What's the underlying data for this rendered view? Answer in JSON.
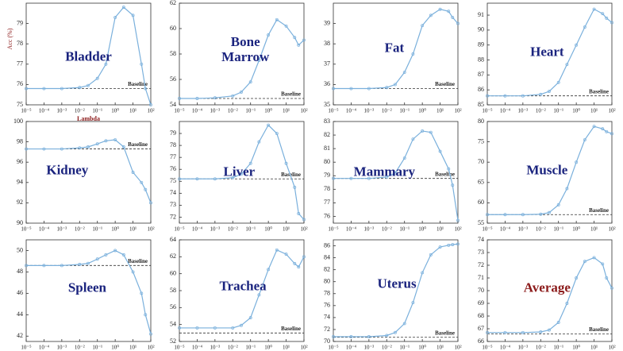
{
  "chart_data": [
    {
      "type": "line",
      "title": "Bladder",
      "ylabel": "Acc (%)",
      "xlabel": "Lambda",
      "xscale": "log",
      "xlim": [
        1e-05,
        100
      ],
      "xticks": [
        {
          "value": 1e-05,
          "label": "10⁻⁵"
        },
        {
          "value": 0.0001,
          "label": "10⁻⁴"
        },
        {
          "value": 0.001,
          "label": "10⁻³"
        },
        {
          "value": 0.01,
          "label": "10⁻²"
        },
        {
          "value": 0.1,
          "label": "10⁻¹"
        },
        {
          "value": 1,
          "label": "10⁰"
        },
        {
          "value": 10,
          "label": "10¹"
        },
        {
          "value": 100,
          "label": "10²"
        }
      ],
      "ylim": [
        75,
        80
      ],
      "yticks": [
        75,
        76,
        77,
        78,
        79
      ],
      "baseline": 75.8,
      "baseline_label": "Baseline",
      "color": "#7ab0dc",
      "title_color": "#1a237e",
      "x": [
        1e-05,
        0.0001,
        0.001,
        0.01,
        0.03,
        0.1,
        0.3,
        1,
        3,
        10,
        30,
        50,
        100
      ],
      "values": [
        75.8,
        75.8,
        75.8,
        75.85,
        75.95,
        76.3,
        77.0,
        79.3,
        79.8,
        79.4,
        77.0,
        75.8,
        75.0
      ]
    },
    {
      "type": "line",
      "title": "Bone\nMarrow",
      "xscale": "log",
      "xlim": [
        1e-05,
        100
      ],
      "xticks": [
        {
          "value": 1e-05,
          "label": "10⁻⁵"
        },
        {
          "value": 0.0001,
          "label": "10⁻⁴"
        },
        {
          "value": 0.001,
          "label": "10⁻³"
        },
        {
          "value": 0.01,
          "label": "10⁻²"
        },
        {
          "value": 0.1,
          "label": "10⁻¹"
        },
        {
          "value": 1,
          "label": "10⁰"
        },
        {
          "value": 10,
          "label": "10¹"
        },
        {
          "value": 100,
          "label": "10²"
        }
      ],
      "ylim": [
        54,
        62
      ],
      "yticks": [
        54,
        56,
        58,
        60,
        62
      ],
      "baseline": 54.5,
      "baseline_label": "Baseline",
      "color": "#7ab0dc",
      "title_color": "#1a237e",
      "x": [
        1e-05,
        0.0001,
        0.001,
        0.01,
        0.03,
        0.1,
        0.3,
        1,
        3,
        10,
        30,
        50,
        100
      ],
      "values": [
        54.5,
        54.5,
        54.55,
        54.7,
        55.0,
        55.8,
        57.5,
        59.5,
        60.7,
        60.2,
        59.3,
        58.7,
        59.1
      ]
    },
    {
      "type": "line",
      "title": "Fat",
      "xscale": "log",
      "xlim": [
        1e-05,
        100
      ],
      "xticks": [
        {
          "value": 1e-05,
          "label": "10⁻⁵"
        },
        {
          "value": 0.0001,
          "label": "10⁻⁴"
        },
        {
          "value": 0.001,
          "label": "10⁻³"
        },
        {
          "value": 0.01,
          "label": "10⁻²"
        },
        {
          "value": 0.1,
          "label": "10⁻¹"
        },
        {
          "value": 1,
          "label": "10⁰"
        },
        {
          "value": 10,
          "label": "10¹"
        },
        {
          "value": 100,
          "label": "10²"
        }
      ],
      "ylim": [
        35,
        40
      ],
      "yticks": [
        35,
        36,
        37,
        38,
        39
      ],
      "baseline": 35.8,
      "baseline_label": "Baseline",
      "color": "#7ab0dc",
      "title_color": "#1a237e",
      "x": [
        1e-05,
        0.0001,
        0.001,
        0.01,
        0.03,
        0.1,
        0.3,
        1,
        3,
        10,
        30,
        50,
        100
      ],
      "values": [
        35.8,
        35.8,
        35.8,
        35.85,
        36.0,
        36.6,
        37.5,
        38.9,
        39.4,
        39.7,
        39.6,
        39.3,
        39.0
      ]
    },
    {
      "type": "line",
      "title": "Heart",
      "xscale": "log",
      "xlim": [
        1e-05,
        100
      ],
      "xticks": [
        {
          "value": 1e-05,
          "label": "10⁻⁵"
        },
        {
          "value": 0.0001,
          "label": "10⁻⁴"
        },
        {
          "value": 0.001,
          "label": "10⁻³"
        },
        {
          "value": 0.01,
          "label": "10⁻²"
        },
        {
          "value": 0.1,
          "label": "10⁻¹"
        },
        {
          "value": 1,
          "label": "10⁰"
        },
        {
          "value": 10,
          "label": "10¹"
        },
        {
          "value": 100,
          "label": "10²"
        }
      ],
      "ylim": [
        85,
        91.8
      ],
      "yticks": [
        85,
        86,
        87,
        88,
        89,
        90,
        91
      ],
      "baseline": 85.6,
      "baseline_label": "Baseline",
      "color": "#7ab0dc",
      "title_color": "#1a237e",
      "x": [
        1e-05,
        0.0001,
        0.001,
        0.01,
        0.03,
        0.1,
        0.3,
        1,
        3,
        10,
        30,
        50,
        100
      ],
      "values": [
        85.6,
        85.6,
        85.6,
        85.7,
        85.9,
        86.5,
        87.7,
        89.0,
        90.2,
        91.4,
        91.1,
        90.8,
        90.5
      ]
    },
    {
      "type": "line",
      "title": "Kidney",
      "xscale": "log",
      "xlim": [
        1e-05,
        100
      ],
      "xticks": [
        {
          "value": 1e-05,
          "label": "10⁻⁵"
        },
        {
          "value": 0.0001,
          "label": "10⁻⁴"
        },
        {
          "value": 0.001,
          "label": "10⁻³"
        },
        {
          "value": 0.01,
          "label": "10⁻²"
        },
        {
          "value": 0.1,
          "label": "10⁻¹"
        },
        {
          "value": 1,
          "label": "10⁰"
        },
        {
          "value": 10,
          "label": "10¹"
        },
        {
          "value": 100,
          "label": "10²"
        }
      ],
      "ylim": [
        90,
        100
      ],
      "yticks": [
        90,
        92,
        94,
        96,
        98,
        100
      ],
      "baseline": 97.3,
      "baseline_label": "Baseline",
      "color": "#7ab0dc",
      "title_color": "#1a237e",
      "x": [
        1e-05,
        0.0001,
        0.001,
        0.01,
        0.03,
        0.1,
        0.3,
        1,
        3,
        10,
        30,
        50,
        100
      ],
      "values": [
        97.3,
        97.3,
        97.3,
        97.4,
        97.5,
        97.8,
        98.1,
        98.2,
        97.5,
        95.0,
        94.0,
        93.3,
        92.0
      ]
    },
    {
      "type": "line",
      "title": "Liver",
      "xscale": "log",
      "xlim": [
        1e-05,
        100
      ],
      "xticks": [
        {
          "value": 1e-05,
          "label": "10⁻⁵"
        },
        {
          "value": 0.0001,
          "label": "10⁻⁴"
        },
        {
          "value": 0.001,
          "label": "10⁻³"
        },
        {
          "value": 0.01,
          "label": "10⁻²"
        },
        {
          "value": 0.1,
          "label": "10⁻¹"
        },
        {
          "value": 1,
          "label": "10⁰"
        },
        {
          "value": 10,
          "label": "10¹"
        },
        {
          "value": 100,
          "label": "10²"
        }
      ],
      "ylim": [
        71.5,
        80
      ],
      "yticks": [
        72,
        73,
        74,
        75,
        76,
        77,
        78,
        79
      ],
      "baseline": 75.2,
      "baseline_label": "Baseline",
      "color": "#7ab0dc",
      "title_color": "#1a237e",
      "x": [
        1e-05,
        0.0001,
        0.001,
        0.01,
        0.03,
        0.1,
        0.3,
        1,
        3,
        10,
        30,
        50,
        100
      ],
      "values": [
        75.2,
        75.2,
        75.2,
        75.3,
        75.6,
        76.5,
        78.3,
        79.7,
        79.0,
        76.5,
        74.5,
        72.3,
        71.8
      ]
    },
    {
      "type": "line",
      "title": "Mammary",
      "xscale": "log",
      "xlim": [
        1e-05,
        100
      ],
      "xticks": [
        {
          "value": 1e-05,
          "label": "10⁻⁵"
        },
        {
          "value": 0.0001,
          "label": "10⁻⁴"
        },
        {
          "value": 0.001,
          "label": "10⁻³"
        },
        {
          "value": 0.01,
          "label": "10⁻²"
        },
        {
          "value": 0.1,
          "label": "10⁻¹"
        },
        {
          "value": 1,
          "label": "10⁰"
        },
        {
          "value": 10,
          "label": "10¹"
        },
        {
          "value": 100,
          "label": "10²"
        }
      ],
      "ylim": [
        75.5,
        83
      ],
      "yticks": [
        76,
        77,
        78,
        79,
        80,
        81,
        82,
        83
      ],
      "baseline": 78.8,
      "baseline_label": "Baseline",
      "color": "#7ab0dc",
      "title_color": "#1a237e",
      "x": [
        1e-05,
        0.0001,
        0.001,
        0.01,
        0.03,
        0.1,
        0.3,
        1,
        3,
        10,
        30,
        50,
        100
      ],
      "values": [
        78.8,
        78.8,
        78.8,
        78.9,
        79.2,
        80.3,
        81.7,
        82.3,
        82.2,
        80.8,
        79.5,
        78.3,
        75.7
      ]
    },
    {
      "type": "line",
      "title": "Muscle",
      "xscale": "log",
      "xlim": [
        1e-05,
        100
      ],
      "xticks": [
        {
          "value": 1e-05,
          "label": "10⁻⁵"
        },
        {
          "value": 0.0001,
          "label": "10⁻⁴"
        },
        {
          "value": 0.001,
          "label": "10⁻³"
        },
        {
          "value": 0.01,
          "label": "10⁻²"
        },
        {
          "value": 0.1,
          "label": "10⁻¹"
        },
        {
          "value": 1,
          "label": "10⁰"
        },
        {
          "value": 10,
          "label": "10¹"
        },
        {
          "value": 100,
          "label": "10²"
        }
      ],
      "ylim": [
        55,
        80
      ],
      "yticks": [
        55,
        60,
        65,
        70,
        75,
        80
      ],
      "baseline": 57.1,
      "baseline_label": "Baseline",
      "color": "#7ab0dc",
      "title_color": "#1a237e",
      "x": [
        1e-05,
        0.0001,
        0.001,
        0.01,
        0.03,
        0.1,
        0.3,
        1,
        3,
        10,
        30,
        50,
        100
      ],
      "values": [
        57.1,
        57.1,
        57.1,
        57.2,
        57.6,
        59.5,
        63.5,
        70.0,
        75.5,
        78.8,
        78.2,
        77.5,
        77.0
      ]
    },
    {
      "type": "line",
      "title": "Spleen",
      "xscale": "log",
      "xlim": [
        1e-05,
        100
      ],
      "xticks": [
        {
          "value": 1e-05,
          "label": "10⁻⁵"
        },
        {
          "value": 0.0001,
          "label": "10⁻⁴"
        },
        {
          "value": 0.001,
          "label": "10⁻³"
        },
        {
          "value": 0.01,
          "label": "10⁻²"
        },
        {
          "value": 0.1,
          "label": "10⁻¹"
        },
        {
          "value": 1,
          "label": "10⁰"
        },
        {
          "value": 10,
          "label": "10¹"
        },
        {
          "value": 100,
          "label": "10²"
        }
      ],
      "ylim": [
        41.5,
        51
      ],
      "yticks": [
        42,
        44,
        46,
        48,
        50
      ],
      "baseline": 48.6,
      "baseline_label": "Baseline",
      "color": "#7ab0dc",
      "title_color": "#1a237e",
      "x": [
        1e-05,
        0.0001,
        0.001,
        0.01,
        0.03,
        0.1,
        0.3,
        1,
        3,
        10,
        30,
        50,
        100
      ],
      "values": [
        48.6,
        48.6,
        48.6,
        48.7,
        48.8,
        49.2,
        49.6,
        50.0,
        49.6,
        48.0,
        46.0,
        44.0,
        42.2
      ]
    },
    {
      "type": "line",
      "title": "Trachea",
      "xscale": "log",
      "xlim": [
        1e-05,
        100
      ],
      "xticks": [
        {
          "value": 1e-05,
          "label": "10⁻⁵"
        },
        {
          "value": 0.0001,
          "label": "10⁻⁴"
        },
        {
          "value": 0.001,
          "label": "10⁻³"
        },
        {
          "value": 0.01,
          "label": "10⁻²"
        },
        {
          "value": 0.1,
          "label": "10⁻¹"
        },
        {
          "value": 1,
          "label": "10⁰"
        },
        {
          "value": 10,
          "label": "10¹"
        },
        {
          "value": 100,
          "label": "10²"
        }
      ],
      "ylim": [
        52,
        64
      ],
      "yticks": [
        52,
        54,
        56,
        58,
        60,
        62,
        64
      ],
      "baseline": 53.0,
      "baseline_label": "Baseline",
      "color": "#7ab0dc",
      "title_color": "#1a237e",
      "x": [
        1e-05,
        0.0001,
        0.001,
        0.01,
        0.03,
        0.1,
        0.3,
        1,
        3,
        10,
        30,
        50,
        100
      ],
      "values": [
        53.6,
        53.6,
        53.6,
        53.6,
        53.9,
        54.8,
        57.5,
        60.5,
        62.8,
        62.3,
        61.2,
        60.8,
        62.0
      ]
    },
    {
      "type": "line",
      "title": "Uterus",
      "xscale": "log",
      "xlim": [
        1e-05,
        100
      ],
      "xticks": [
        {
          "value": 1e-05,
          "label": "10⁻⁵"
        },
        {
          "value": 0.0001,
          "label": "10⁻⁴"
        },
        {
          "value": 0.001,
          "label": "10⁻³"
        },
        {
          "value": 0.01,
          "label": "10⁻²"
        },
        {
          "value": 0.1,
          "label": "10⁻¹"
        },
        {
          "value": 1,
          "label": "10⁰"
        },
        {
          "value": 10,
          "label": "10¹"
        },
        {
          "value": 100,
          "label": "10²"
        }
      ],
      "ylim": [
        70,
        87
      ],
      "yticks": [
        70,
        72,
        74,
        76,
        78,
        80,
        82,
        84,
        86
      ],
      "baseline": 70.7,
      "baseline_label": "Baseline",
      "color": "#7ab0dc",
      "title_color": "#1a237e",
      "x": [
        1e-05,
        0.0001,
        0.001,
        0.01,
        0.03,
        0.1,
        0.3,
        1,
        3,
        10,
        30,
        50,
        100
      ],
      "values": [
        70.8,
        70.8,
        70.8,
        71.0,
        71.5,
        73.0,
        76.5,
        81.5,
        84.5,
        85.8,
        86.1,
        86.2,
        86.3
      ]
    },
    {
      "type": "line",
      "title": "Average",
      "xscale": "log",
      "xlim": [
        1e-05,
        100
      ],
      "xticks": [
        {
          "value": 1e-05,
          "label": "10⁻⁵"
        },
        {
          "value": 0.0001,
          "label": "10⁻⁴"
        },
        {
          "value": 0.001,
          "label": "10⁻³"
        },
        {
          "value": 0.01,
          "label": "10⁻²"
        },
        {
          "value": 0.1,
          "label": "10⁻¹"
        },
        {
          "value": 1,
          "label": "10⁰"
        },
        {
          "value": 10,
          "label": "10¹"
        },
        {
          "value": 100,
          "label": "10²"
        }
      ],
      "ylim": [
        66,
        74
      ],
      "yticks": [
        66,
        67,
        68,
        69,
        70,
        71,
        72,
        73,
        74
      ],
      "baseline": 66.6,
      "baseline_label": "Baseline",
      "color": "#7ab0dc",
      "title_color": "#8b1a1a",
      "x": [
        1e-05,
        0.0001,
        0.001,
        0.01,
        0.03,
        0.1,
        0.3,
        1,
        3,
        10,
        30,
        50,
        100
      ],
      "values": [
        66.7,
        66.7,
        66.7,
        66.75,
        66.9,
        67.5,
        69.0,
        71.0,
        72.3,
        72.6,
        72.1,
        71.0,
        70.2
      ]
    }
  ]
}
